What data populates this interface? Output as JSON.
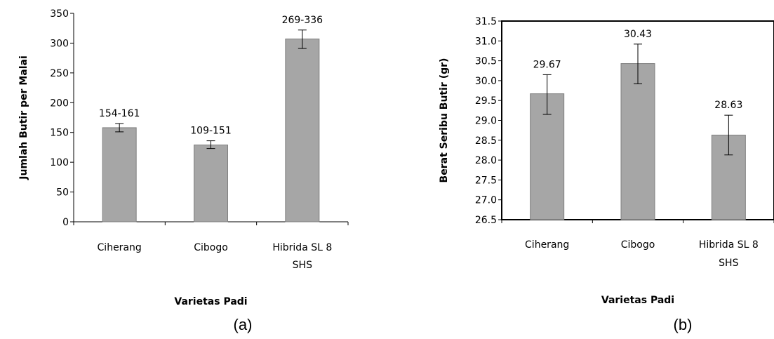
{
  "chart_data": [
    {
      "type": "bar",
      "caption": "(a)",
      "categories": [
        [
          "Ciherang"
        ],
        [
          "Cibogo"
        ],
        [
          "Hibrida SL 8",
          "SHS"
        ]
      ],
      "values": [
        158,
        129,
        307
      ],
      "error_low": [
        151,
        123,
        291
      ],
      "error_high": [
        165,
        136,
        322
      ],
      "data_labels": [
        "154-161",
        "109-151",
        "269-336"
      ],
      "title": "",
      "xlabel": "Varietas Padi",
      "ylabel": "Jumlah Butir per Malai",
      "ylim": [
        0,
        350
      ],
      "yticks": [
        "0",
        "50",
        "100",
        "150",
        "200",
        "250",
        "300",
        "350"
      ],
      "grid": false,
      "bar_color": "#a6a6a6",
      "bar_border": "#7f7f7f"
    },
    {
      "type": "bar",
      "caption": "(b)",
      "categories": [
        [
          "Ciherang"
        ],
        [
          "Cibogo"
        ],
        [
          "Hibrida SL 8",
          "SHS"
        ]
      ],
      "values": [
        29.67,
        30.43,
        28.63
      ],
      "error_low": [
        29.15,
        29.92,
        28.13
      ],
      "error_high": [
        30.15,
        30.92,
        29.13
      ],
      "data_labels": [
        "29.67",
        "30.43",
        "28.63"
      ],
      "title": "",
      "xlabel": "Varietas Padi",
      "ylabel": "Berat Seribu Butir (gr)",
      "ylim": [
        26.5,
        31.5
      ],
      "yticks": [
        "26.5",
        "27.0",
        "27.5",
        "28.0",
        "28.5",
        "29.0",
        "29.5",
        "30.0",
        "30.5",
        "31.0",
        "31.5"
      ],
      "grid": false,
      "bar_color": "#a6a6a6",
      "bar_border": "#7f7f7f"
    }
  ]
}
